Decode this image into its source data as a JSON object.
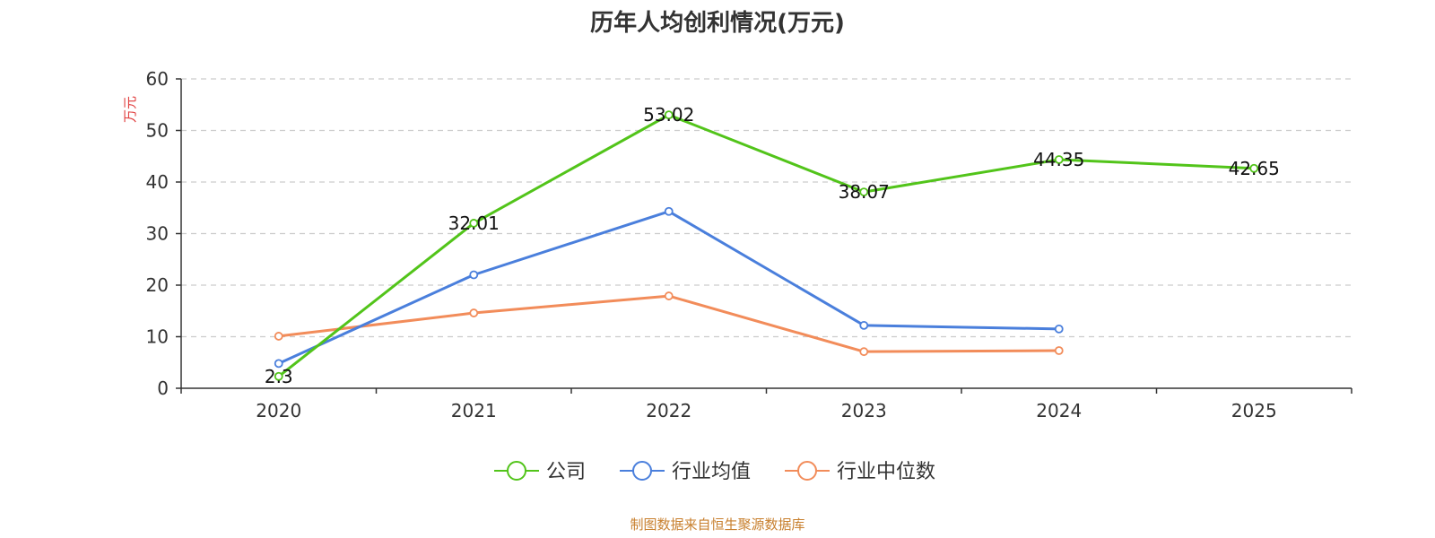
{
  "chart_data": {
    "type": "line",
    "title": "历年人均创利情况(万元)",
    "ylabel": "万元",
    "xlabel": "",
    "ylim": [
      0,
      60
    ],
    "yticks": [
      0,
      10,
      20,
      30,
      40,
      50,
      60
    ],
    "grid": true,
    "legend_position": "bottom",
    "categories": [
      "2020",
      "2021",
      "2022",
      "2023",
      "2024",
      "2025"
    ],
    "series": [
      {
        "name": "公司",
        "color": "#52c41a",
        "values": [
          2.3,
          32.01,
          53.02,
          38.07,
          44.35,
          42.65
        ],
        "show_labels": true
      },
      {
        "name": "行业均值",
        "color": "#4a7fdc",
        "values": [
          4.8,
          22.0,
          34.3,
          12.2,
          11.5,
          null
        ],
        "show_labels": false
      },
      {
        "name": "行业中位数",
        "color": "#f28c5a",
        "values": [
          10.1,
          14.6,
          17.9,
          7.1,
          7.3,
          null
        ],
        "show_labels": false
      }
    ],
    "source": "制图数据来自恒生聚源数据库"
  }
}
